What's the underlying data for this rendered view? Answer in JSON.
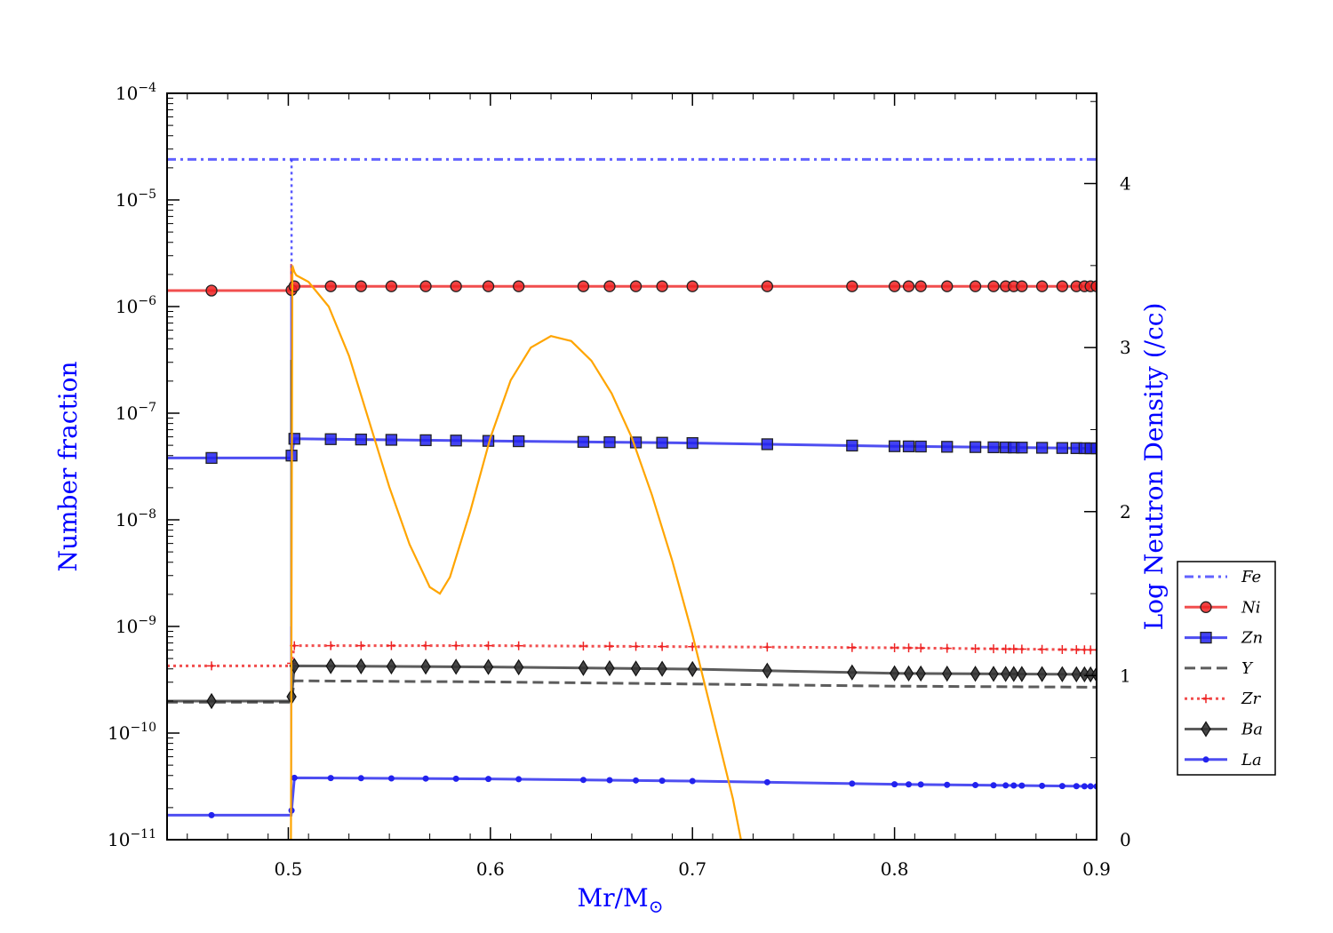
{
  "chart_data": {
    "type": "line",
    "xlabel_main": "Mr/M",
    "xlabel_sub": "⊙",
    "ylabel_left": "Number fraction",
    "ylabel_right": "Log Neutron Density (/cc)",
    "xlim": [
      0.44,
      0.9
    ],
    "ylim_left_log10": [
      -11,
      -4
    ],
    "ylim_right": [
      0,
      4.55
    ],
    "y_scale_left": "log",
    "x_ticks": [
      "0.5",
      "0.6",
      "0.7",
      "0.8",
      "0.9"
    ],
    "x_tick_values": [
      0.5,
      0.6,
      0.7,
      0.8,
      0.9
    ],
    "y_left_tick_exponents": [
      "−4",
      "−5",
      "−6",
      "−7",
      "−8",
      "−9",
      "−10",
      "−11"
    ],
    "y_left_tick_values": [
      -4,
      -5,
      -6,
      -7,
      -8,
      -9,
      -10,
      -11
    ],
    "y_left_tick_base": "10",
    "y_right_ticks": [
      "4",
      "3",
      "2",
      "1",
      "0"
    ],
    "y_right_tick_values": [
      4,
      3,
      2,
      1,
      0
    ],
    "legend_position": "right",
    "grid": false,
    "marker_x": [
      0.462,
      0.5016,
      0.503,
      0.521,
      0.536,
      0.551,
      0.568,
      0.583,
      0.599,
      0.614,
      0.646,
      0.659,
      0.672,
      0.685,
      0.7,
      0.737,
      0.779,
      0.8,
      0.807,
      0.813,
      0.826,
      0.84,
      0.849,
      0.855,
      0.859,
      0.863,
      0.873,
      0.883,
      0.89,
      0.894,
      0.897,
      0.9
    ],
    "series": [
      {
        "name": "Fe",
        "color": "#3b3bff",
        "style": "dashdot",
        "marker": "none",
        "x": [
          0.44,
          0.5016,
          0.9
        ],
        "log10_y": [
          -4.62,
          -4.62,
          -4.62
        ]
      },
      {
        "name": "Ni",
        "color": "#ee2222",
        "style": "solid",
        "marker": "circle",
        "x": [
          0.44,
          0.5014,
          0.503,
          0.9
        ],
        "log10_y": [
          -5.85,
          -5.85,
          -5.81,
          -5.81
        ]
      },
      {
        "name": "Zn",
        "color": "#2222ee",
        "style": "solid",
        "marker": "square",
        "x": [
          0.44,
          0.5014,
          0.503,
          0.6,
          0.7,
          0.8,
          0.9
        ],
        "log10_y": [
          -7.42,
          -7.42,
          -7.24,
          -7.26,
          -7.28,
          -7.31,
          -7.33
        ]
      },
      {
        "name": "Y",
        "color": "#333333",
        "style": "dashed",
        "marker": "none",
        "x": [
          0.44,
          0.5014,
          0.503,
          0.6,
          0.7,
          0.8,
          0.9
        ],
        "log10_y": [
          -9.71,
          -9.71,
          -9.51,
          -9.52,
          -9.54,
          -9.56,
          -9.57
        ]
      },
      {
        "name": "Zr",
        "color": "#ee2222",
        "style": "dotted",
        "marker": "plus",
        "x": [
          0.44,
          0.5014,
          0.503,
          0.6,
          0.7,
          0.8,
          0.9
        ],
        "log10_y": [
          -9.37,
          -9.37,
          -9.18,
          -9.18,
          -9.19,
          -9.2,
          -9.22
        ]
      },
      {
        "name": "Ba",
        "color": "#333333",
        "style": "solid",
        "marker": "diamond",
        "x": [
          0.44,
          0.5014,
          0.503,
          0.6,
          0.7,
          0.8,
          0.9
        ],
        "log10_y": [
          -9.7,
          -9.7,
          -9.37,
          -9.38,
          -9.4,
          -9.44,
          -9.45
        ]
      },
      {
        "name": "La",
        "color": "#2222ee",
        "style": "solid",
        "marker": "dot",
        "x": [
          0.44,
          0.5014,
          0.503,
          0.6,
          0.7,
          0.8,
          0.9
        ],
        "log10_y": [
          -10.77,
          -10.77,
          -10.42,
          -10.43,
          -10.45,
          -10.48,
          -10.5
        ]
      }
    ],
    "neutron_density": {
      "color": "#ffa500",
      "x": [
        0.5013,
        0.502,
        0.503,
        0.504,
        0.51,
        0.52,
        0.53,
        0.54,
        0.55,
        0.56,
        0.57,
        0.575,
        0.58,
        0.59,
        0.6,
        0.61,
        0.62,
        0.63,
        0.64,
        0.65,
        0.66,
        0.67,
        0.68,
        0.69,
        0.7,
        0.71,
        0.72,
        0.724
      ],
      "y": [
        0.0,
        3.5,
        3.46,
        3.44,
        3.4,
        3.25,
        2.95,
        2.55,
        2.15,
        1.8,
        1.54,
        1.5,
        1.6,
        2.0,
        2.45,
        2.8,
        3.0,
        3.07,
        3.04,
        2.92,
        2.72,
        2.45,
        2.1,
        1.7,
        1.25,
        0.75,
        0.25,
        0.0
      ]
    },
    "spikes": [
      {
        "color": "#ee2222",
        "log10_y": [
          -5.85,
          -5.6
        ]
      },
      {
        "color": "#2222ee",
        "log10_y": [
          -7.42,
          -5.8
        ]
      },
      {
        "color": "#333333",
        "log10_y": [
          -9.7,
          -6.5
        ]
      },
      {
        "color": "#2222ee",
        "log10_y": [
          -10.77,
          -9.0
        ]
      }
    ]
  }
}
